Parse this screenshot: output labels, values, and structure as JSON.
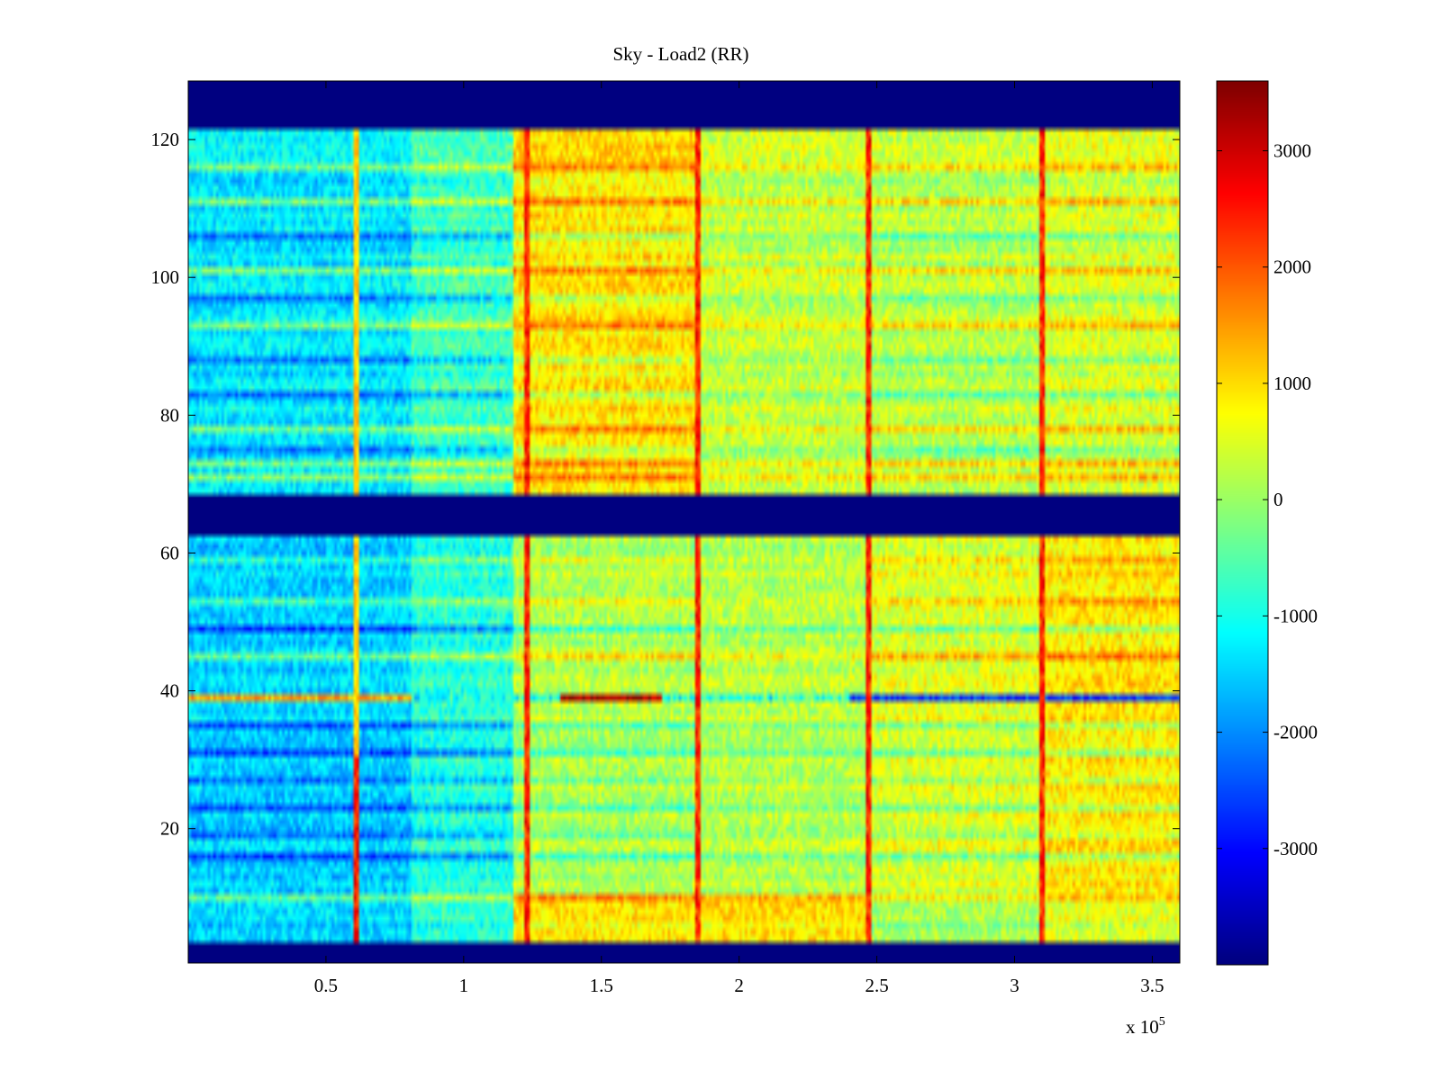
{
  "chart_data": {
    "type": "heatmap",
    "title": "Sky - Load2 (RR)",
    "xlabel": "",
    "ylabel": "",
    "x_exponent_label": "x 10",
    "x_exponent_power": "5",
    "xlim": [
      0,
      3.6
    ],
    "ylim": [
      0.5,
      128.5
    ],
    "x_ticks": [
      0.5,
      1,
      1.5,
      2,
      2.5,
      3,
      3.5
    ],
    "x_tick_labels": [
      "0.5",
      "1",
      "1.5",
      "2",
      "2.5",
      "3",
      "3.5"
    ],
    "y_ticks": [
      20,
      40,
      60,
      80,
      100,
      120
    ],
    "y_tick_labels": [
      "20",
      "40",
      "60",
      "80",
      "100",
      "120"
    ],
    "colorbar": {
      "clim": [
        -4000,
        3600
      ],
      "ticks": [
        -3000,
        -2000,
        -1000,
        0,
        1000,
        2000,
        3000
      ],
      "tick_labels": [
        "-3000",
        "-2000",
        "-1000",
        "0",
        "1000",
        "2000",
        "3000"
      ],
      "colormap": "jet"
    },
    "masked_row_bands": [
      [
        0.5,
        3.5
      ],
      [
        62.5,
        68.5
      ],
      [
        121.5,
        128.5
      ]
    ],
    "vertical_spike_columns_x": [
      0.61,
      1.23,
      1.85,
      2.47,
      3.1
    ],
    "block_edges_x": [
      0,
      0.81,
      1.18,
      1.85,
      2.47,
      3.1,
      3.6
    ],
    "block_base_values": [
      [
        -1300,
        -700,
        900,
        300,
        200,
        450
      ],
      [
        -1500,
        -900,
        150,
        200,
        500,
        900
      ]
    ],
    "rfi_row": {
      "row": 39,
      "low_segment_value": 1400,
      "peak_x_range": [
        1.35,
        1.72
      ],
      "peak_value": 3300,
      "tail_value": -2700,
      "tail_x_start": 2.4
    },
    "strong_rows_lower": [
      [
        10,
        1
      ],
      [
        16,
        -1
      ],
      [
        19,
        -1
      ],
      [
        23,
        -1
      ],
      [
        27,
        -1
      ],
      [
        31,
        -1
      ],
      [
        35,
        -1
      ],
      [
        45,
        1
      ],
      [
        49,
        -1
      ],
      [
        53,
        1
      ],
      [
        59,
        1
      ]
    ],
    "strong_rows_upper": [
      [
        71,
        1
      ],
      [
        73,
        1
      ],
      [
        75,
        -1
      ],
      [
        78,
        1
      ],
      [
        83,
        -1
      ],
      [
        88,
        -1
      ],
      [
        93,
        1
      ],
      [
        97,
        -1
      ],
      [
        101,
        1
      ],
      [
        106,
        -1
      ],
      [
        111,
        1
      ],
      [
        116,
        1
      ]
    ]
  }
}
